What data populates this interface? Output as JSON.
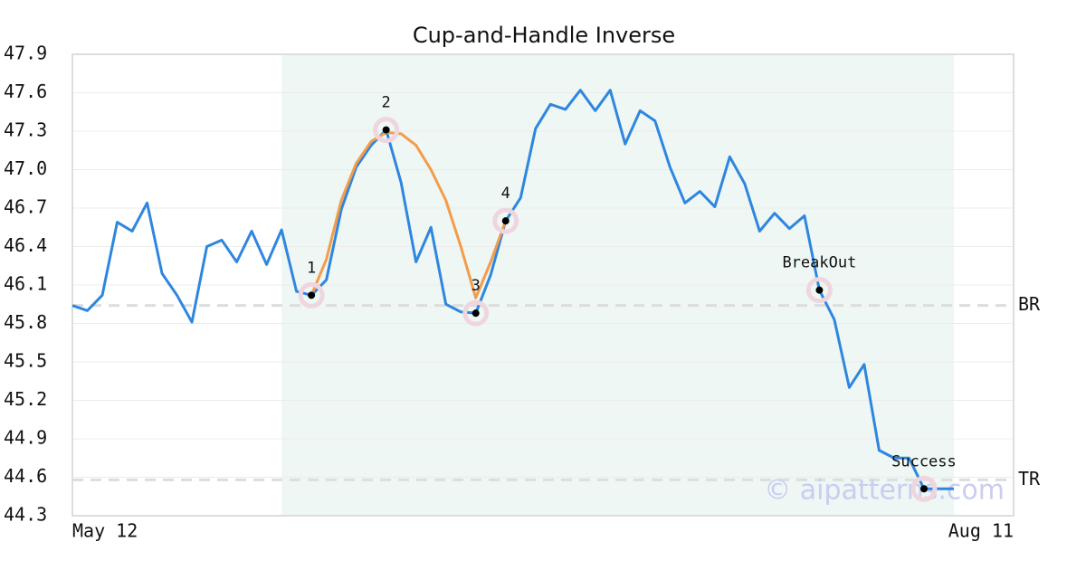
{
  "chart_data": {
    "type": "line",
    "title": "Cup-and-Handle Inverse",
    "x": [
      0,
      1,
      2,
      3,
      4,
      5,
      6,
      7,
      8,
      9,
      10,
      11,
      12,
      13,
      14,
      15,
      16,
      17,
      18,
      19,
      20,
      21,
      22,
      23,
      24,
      25,
      26,
      27,
      28,
      29,
      30,
      31,
      32,
      33,
      34,
      35,
      36,
      37,
      38,
      39,
      40,
      41,
      42,
      43,
      44,
      45,
      46,
      47,
      48,
      49,
      50,
      51,
      52,
      53,
      54,
      55,
      56,
      57,
      58,
      59
    ],
    "xlim": [
      0,
      63
    ],
    "xticks": [
      {
        "value": 0,
        "label": "May 12"
      },
      {
        "value": 63,
        "label": "Aug 11"
      }
    ],
    "ylim": [
      44.3,
      47.9
    ],
    "yticks": [
      44.3,
      44.6,
      44.9,
      45.2,
      45.5,
      45.8,
      46.1,
      46.4,
      46.7,
      {
        "value": 47,
        "label": "47.0"
      },
      47.3,
      47.6,
      47.9
    ],
    "grid": true,
    "series": [
      {
        "color": "#2f86e0",
        "values": [
          45.94,
          45.9,
          46.02,
          46.59,
          46.52,
          46.74,
          46.19,
          46.02,
          45.81,
          46.4,
          46.45,
          46.28,
          46.52,
          46.26,
          46.53,
          46.05,
          46.02,
          46.14,
          46.69,
          47.02,
          47.19,
          47.31,
          46.9,
          46.28,
          46.55,
          45.95,
          45.89,
          45.88,
          46.18,
          46.6,
          46.78,
          47.32,
          47.51,
          47.47,
          47.62,
          47.46,
          47.62,
          47.2,
          47.46,
          47.38,
          47.02,
          46.74,
          46.83,
          46.71,
          47.1,
          46.89,
          46.52,
          46.66,
          46.54,
          46.64,
          46.06,
          45.83,
          45.3,
          45.48,
          44.81,
          44.75,
          44.75,
          44.51,
          44.51,
          44.51
        ]
      },
      {
        "color": "#f39c4a",
        "values": [
          null,
          null,
          null,
          null,
          null,
          null,
          null,
          null,
          null,
          null,
          null,
          null,
          null,
          null,
          null,
          null,
          46.02,
          46.3,
          46.76,
          47.05,
          47.22,
          47.29,
          47.28,
          47.19,
          47.0,
          46.76,
          46.4,
          46.0,
          46.28,
          46.6,
          null,
          null,
          null,
          null,
          null,
          null,
          null,
          null,
          null,
          null,
          null,
          null,
          null,
          null,
          null,
          null,
          null,
          null,
          null,
          null,
          null,
          null,
          null,
          null,
          null,
          null,
          null,
          null,
          null,
          null
        ]
      }
    ],
    "highlight": [
      14,
      59
    ],
    "highlight_color": "#eef7f3",
    "points": [
      {
        "label": "1",
        "x": 16,
        "y": 46.02
      },
      {
        "label": "2",
        "x": 21,
        "y": 47.31
      },
      {
        "label": "3",
        "x": 27,
        "y": 45.88
      },
      {
        "label": "4",
        "x": 29,
        "y": 46.6
      },
      {
        "label": "BreakOut",
        "x": 50,
        "y": 46.06
      },
      {
        "label": "Success",
        "x": 57,
        "y": 44.51
      }
    ],
    "levels": [
      {
        "label": "BR",
        "value": 45.94
      },
      {
        "label": "TR",
        "value": 44.58
      }
    ],
    "watermark": "© aipatterns.com"
  }
}
